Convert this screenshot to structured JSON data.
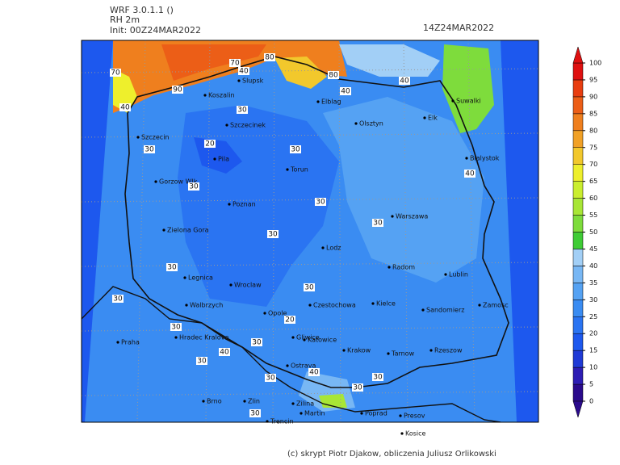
{
  "header": {
    "model": "WRF 3.0.1.1 ()",
    "variable": "RH 2m",
    "init": "Init: 00Z24MAR2022",
    "valid": "14Z24MAR2022"
  },
  "colorbar": {
    "ticks": [
      0,
      5,
      10,
      15,
      20,
      25,
      30,
      35,
      40,
      45,
      50,
      55,
      60,
      65,
      70,
      75,
      80,
      85,
      90,
      95,
      100
    ],
    "colors": [
      "#2a0a8c",
      "#2d1db4",
      "#1f3ad6",
      "#1d58ee",
      "#2a74f2",
      "#3a8cf2",
      "#55a2f3",
      "#78b7f4",
      "#a2cff6",
      "#3fcc36",
      "#7edc3c",
      "#a8e636",
      "#caee2e",
      "#eeef2c",
      "#f2c82c",
      "#f1a126",
      "#ef7f1e",
      "#ec5e17",
      "#e83d10",
      "#df1010"
    ]
  },
  "cities": [
    "Slupsk",
    "Koszalin",
    "Elblag",
    "Suwalki",
    "Elk",
    "Olsztyn",
    "Szczecinek",
    "Szczecin",
    "Bialystok",
    "Pila",
    "Torun",
    "Gorzow Wlk.",
    "Warszawa",
    "Poznan",
    "Zielona Gora",
    "Lodz",
    "Radom",
    "Lublin",
    "Legnica",
    "Wroclaw",
    "Walbrzych",
    "Opole",
    "Czestochowa",
    "Kielce",
    "Sandomierz",
    "Zamosc",
    "Hradec Kralove",
    "Praha",
    "Gliwice",
    "Katowice",
    "Krakow",
    "Tarnow",
    "Rzeszow",
    "Ostrava",
    "Brno",
    "Zlin",
    "Zilina",
    "Martin",
    "Poprad",
    "Presov",
    "Kosice",
    "Trencin"
  ],
  "contour_labels": [
    70,
    70,
    80,
    40,
    80,
    40,
    40,
    90,
    40,
    30,
    30,
    20,
    30,
    30,
    30,
    30,
    40,
    30,
    30,
    30,
    30,
    20,
    30,
    40,
    30,
    30,
    40,
    30,
    30,
    30,
    30
  ],
  "footer": "(c) skrypt Piotr Djakow, obliczenia Juliusz Orlikowski"
}
